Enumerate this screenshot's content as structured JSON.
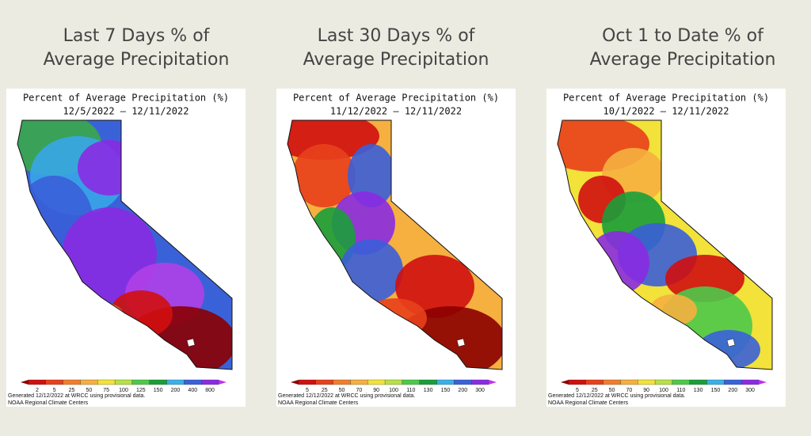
{
  "panels": [
    {
      "heading": [
        "Last 7 Days % of",
        "Average Precipitation"
      ],
      "map_title": "Percent of Average Precipitation (%)",
      "dates": "12/5/2022 – 12/11/2022",
      "legend": [
        2,
        5,
        25,
        50,
        75,
        100,
        125,
        150,
        200,
        400,
        800
      ],
      "footer": [
        "Generated 12/12/2022 at WRCC using provisional data.",
        "NOAA Regional Climate Centers"
      ]
    },
    {
      "heading": [
        "Last 30 Days % of",
        "Average Precipitation"
      ],
      "map_title": "Percent of Average Precipitation (%)",
      "dates": "11/12/2022 – 12/11/2022",
      "legend": [
        5,
        25,
        50,
        70,
        90,
        100,
        110,
        130,
        150,
        200,
        300
      ],
      "footer": [
        "Generated 12/12/2022 at WRCC using provisional data.",
        "NOAA Regional Climate Centers"
      ]
    },
    {
      "heading": [
        "Oct 1 to Date % of",
        "Average Precipitation"
      ],
      "map_title": "Percent of Average Precipitation (%)",
      "dates": "10/1/2022 – 12/11/2022",
      "legend": [
        5,
        25,
        50,
        70,
        90,
        100,
        110,
        130,
        150,
        200,
        300
      ],
      "footer": [
        "Generated 12/12/2022 at WRCC using provisional data.",
        "NOAA Regional Climate Centers"
      ]
    }
  ]
}
